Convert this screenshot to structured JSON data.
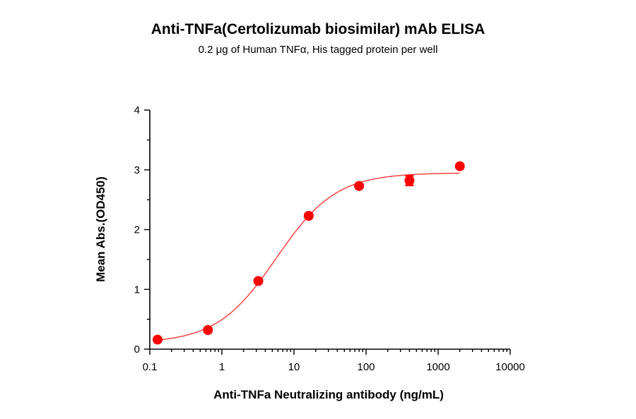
{
  "chart_data": {
    "type": "scatter",
    "title": "Anti-TNFa(Certolizumab biosimilar) mAb ELISA",
    "subtitle": "0.2 μg of Human TNFα, His tagged protein per well",
    "xlabel": "Anti-TNFa Neutralizing antibody (ng/mL)",
    "ylabel": "Mean Abs.(OD450)",
    "x_scale": "log",
    "xlim": [
      0.1,
      10000
    ],
    "ylim": [
      0,
      4
    ],
    "x_ticks": [
      0.1,
      1,
      10,
      100,
      1000,
      10000
    ],
    "x_tick_labels": [
      "0.1",
      "1",
      "10",
      "100",
      "1000",
      "10000"
    ],
    "y_ticks": [
      0,
      1,
      2,
      3,
      4
    ],
    "y_tick_labels": [
      "0",
      "1",
      "2",
      "3",
      "4"
    ],
    "grid": false,
    "point_color": "#ff0000",
    "curve_color": "#ff4444",
    "series": [
      {
        "x": [
          0.128,
          0.64,
          3.2,
          16,
          80,
          400,
          2000
        ],
        "y": [
          0.16,
          0.32,
          1.14,
          2.23,
          2.73,
          2.82,
          3.06
        ],
        "error": [
          0.0,
          0.0,
          0.0,
          0.0,
          0.0,
          0.08,
          0.0
        ]
      }
    ],
    "fit": {
      "type": "4PL",
      "bottom": 0.1,
      "top": 2.95,
      "ec50": 5.7,
      "hill": 1.05
    }
  }
}
